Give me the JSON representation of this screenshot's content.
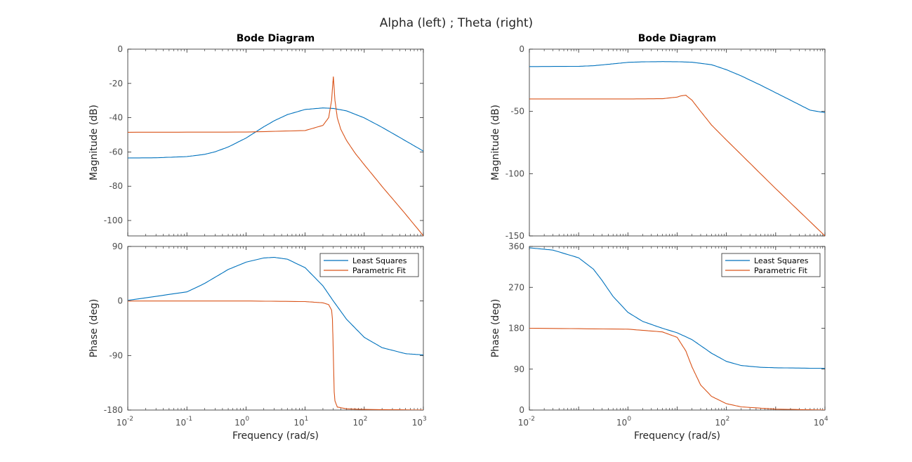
{
  "figure": {
    "title": "Alpha (left) ; Theta (right)"
  },
  "colors": {
    "least_squares": "#0072BD",
    "parametric_fit": "#D95319",
    "axis": "#262626",
    "tick_text": "#4d4d4d"
  },
  "chart_data": [
    {
      "type": "line",
      "id": "alpha",
      "title": "Bode Diagram",
      "xlabel": "Frequency  (rad/s)",
      "xscale": "log",
      "xlim": [
        0.01,
        1000
      ],
      "xticks": [
        {
          "base": "10",
          "exp": "-2",
          "value": 0.01
        },
        {
          "base": "10",
          "exp": "-1",
          "value": 0.1
        },
        {
          "base": "10",
          "exp": "0",
          "value": 1
        },
        {
          "base": "10",
          "exp": "1",
          "value": 10
        },
        {
          "base": "10",
          "exp": "2",
          "value": 100
        },
        {
          "base": "10",
          "exp": "3",
          "value": 1000
        }
      ],
      "magnitude": {
        "ylabel": "Magnitude (dB)",
        "ylim": [
          -109,
          0
        ],
        "yticks": [
          0,
          -20,
          -40,
          -60,
          -80,
          -100
        ],
        "series": [
          {
            "name": "Least Squares",
            "x": [
              0.01,
              0.03,
              0.1,
              0.2,
              0.3,
              0.5,
              1,
              2,
              3,
              5,
              10,
              20,
              30,
              50,
              100,
              200,
              500,
              1000
            ],
            "y": [
              -63.5,
              -63.4,
              -62.7,
              -61.4,
              -59.9,
              -57.1,
              -51.9,
              -45.3,
              -41.8,
              -38.2,
              -35.2,
              -34.3,
              -34.6,
              -36.0,
              -40.1,
              -45.6,
              -53.5,
              -59.5
            ]
          },
          {
            "name": "Parametric Fit",
            "x": [
              0.01,
              1,
              10,
              20,
              25,
              28,
              30,
              32,
              35,
              40,
              50,
              70,
              100,
              200,
              500,
              1000
            ],
            "y": [
              -48.5,
              -48.4,
              -47.5,
              -44.5,
              -40.0,
              -30.0,
              -16.0,
              -30.0,
              -40.0,
              -46.7,
              -53.2,
              -60.7,
              -67.4,
              -80.1,
              -96.3,
              -108.9
            ]
          }
        ]
      },
      "phase": {
        "ylabel": "Phase (deg)",
        "ylim": [
          -180,
          90
        ],
        "yticks": [
          90,
          0,
          -90,
          -180
        ],
        "legend": [
          "Least Squares",
          "Parametric Fit"
        ],
        "legend_location": "top-right",
        "series": [
          {
            "name": "Least Squares",
            "x": [
              0.01,
              0.1,
              0.2,
              0.5,
              1,
              2,
              3,
              5,
              10,
              20,
              30,
              50,
              100,
              200,
              500,
              1000
            ],
            "y": [
              1,
              15,
              29,
              52,
              64,
              71,
              72,
              69,
              55,
              25,
              0,
              -30,
              -60,
              -77,
              -87,
              -89
            ]
          },
          {
            "name": "Parametric Fit",
            "x": [
              0.01,
              1,
              10,
              20,
              25,
              28,
              29,
              30,
              31,
              32,
              35,
              50,
              100,
              1000
            ],
            "y": [
              0,
              0,
              -1,
              -3,
              -6,
              -15,
              -30,
              -90,
              -150,
              -165,
              -175,
              -178,
              -179,
              -180
            ]
          }
        ]
      }
    },
    {
      "type": "line",
      "id": "theta",
      "title": "Bode Diagram",
      "xlabel": "Frequency  (rad/s)",
      "xscale": "log",
      "xlim": [
        0.01,
        10000
      ],
      "xticks": [
        {
          "base": "10",
          "exp": "-2",
          "value": 0.01
        },
        {
          "base": "10",
          "exp": "0",
          "value": 1
        },
        {
          "base": "10",
          "exp": "2",
          "value": 100
        },
        {
          "base": "10",
          "exp": "4",
          "value": 10000
        }
      ],
      "magnitude": {
        "ylabel": "Magnitude (dB)",
        "ylim": [
          -150,
          0
        ],
        "yticks": [
          0,
          -50,
          -100,
          -150
        ],
        "series": [
          {
            "name": "Least Squares",
            "x": [
              0.01,
              0.1,
              0.2,
              0.5,
              1,
              2,
              5,
              10,
              20,
              50,
              100,
              200,
              500,
              1000,
              2000,
              5000,
              10000
            ],
            "y": [
              -14,
              -13.8,
              -13.3,
              -11.8,
              -10.6,
              -10.2,
              -10.0,
              -10.1,
              -10.5,
              -12.5,
              -16.5,
              -21.5,
              -29.0,
              -35.0,
              -41.0,
              -49.0,
              -51.0
            ]
          },
          {
            "name": "Parametric Fit",
            "x": [
              0.01,
              1,
              5,
              10,
              12,
              15,
              20,
              30,
              50,
              100,
              1000,
              10000
            ],
            "y": [
              -40.0,
              -40.0,
              -39.8,
              -38.5,
              -37.5,
              -37.0,
              -41.0,
              -50.0,
              -61.0,
              -73.0,
              -112.0,
              -150.0
            ]
          }
        ]
      },
      "phase": {
        "ylabel": "Phase (deg)",
        "ylim": [
          0,
          360
        ],
        "yticks": [
          360,
          270,
          180,
          90,
          0
        ],
        "legend": [
          "Least Squares",
          "Parametric Fit"
        ],
        "legend_location": "top-right",
        "series": [
          {
            "name": "Least Squares",
            "x": [
              0.01,
              0.03,
              0.1,
              0.2,
              0.3,
              0.5,
              1,
              2,
              5,
              10,
              20,
              50,
              100,
              200,
              500,
              1000,
              5000,
              10000
            ],
            "y": [
              357,
              352,
              335,
              310,
              285,
              250,
              215,
              195,
              180,
              170,
              155,
              125,
              107,
              98,
              94,
              93,
              92,
              92
            ]
          },
          {
            "name": "Parametric Fit",
            "x": [
              0.01,
              1,
              5,
              10,
              15,
              20,
              30,
              50,
              100,
              200,
              1000,
              10000
            ],
            "y": [
              180,
              178,
              172,
              160,
              130,
              95,
              55,
              30,
              14,
              7,
              2,
              0
            ]
          }
        ]
      }
    }
  ]
}
